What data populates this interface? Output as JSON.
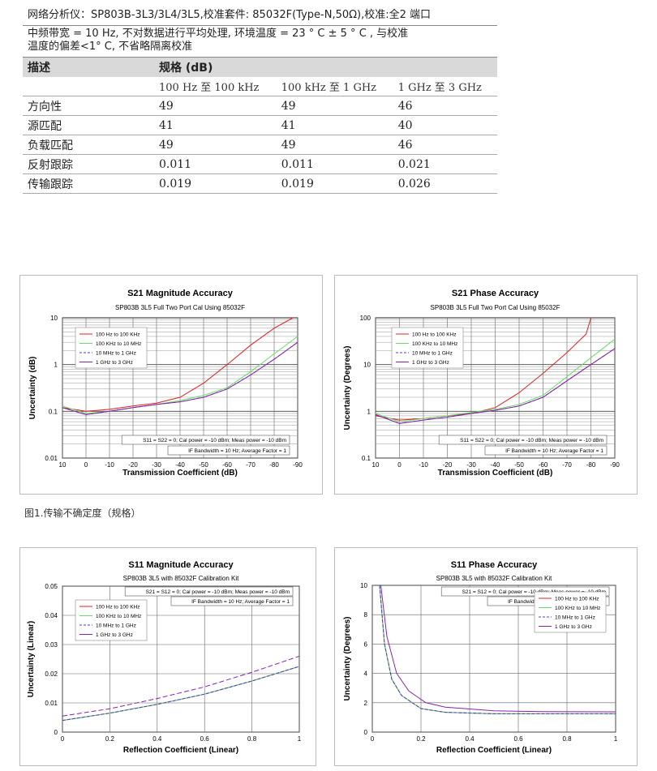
{
  "spec": {
    "header": "网络分析仪：SP803B-3L3/3L4/3L5,校准套件: 85032F(Type-N,50Ω),校准:全2 端口",
    "note_line1": "中频带宽 = 10 Hz, 不对数据进行平均处理, 环境温度 = 23 ° C ± 5 ° C , 与校准",
    "note_line2": "温度的偏差<1° C, 不省略隔离校准",
    "col_desc": "描述",
    "col_spec": "规格 (dB)",
    "bands": [
      "100 Hz 至 100 kHz",
      "100 kHz 至 1 GHz",
      "1 GHz 至 3 GHz"
    ],
    "rows": [
      {
        "name": "方向性",
        "v": [
          "49",
          "49",
          "46"
        ]
      },
      {
        "name": "源匹配",
        "v": [
          "41",
          "41",
          "40"
        ]
      },
      {
        "name": "负载匹配",
        "v": [
          "49",
          "49",
          "46"
        ]
      },
      {
        "name": "反射跟踪",
        "v": [
          "0.011",
          "0.011",
          "0.021"
        ]
      },
      {
        "name": "传输跟踪",
        "v": [
          "0.019",
          "0.019",
          "0.026"
        ]
      }
    ]
  },
  "caption": "图1.传输不确定度（规格）",
  "legend": [
    "100 Hz to 100 KHz",
    "100 KHz to 10 MHz",
    "10 MHz to 1 GHz",
    "1 GHz to 3 GHz"
  ],
  "colors": {
    "s1": "#e02020",
    "s2": "#66dd66",
    "s3": "#4444cc",
    "s4": "#8822aa"
  },
  "chart_data": [
    {
      "type": "line",
      "title": "S21 Magnitude Accuracy",
      "subtitle": "SP803B  3L5 Full Two Port Cal Using 85032F",
      "xlabel": "Transmission Coefficient (dB)",
      "ylabel": "Uncertainty (dB)",
      "xlim": [
        10,
        -90
      ],
      "ylim": [
        0.01,
        10
      ],
      "yscale": "log",
      "xticks": [
        "10",
        "0",
        "-10",
        "-20",
        "-30",
        "-40",
        "-50",
        "-60",
        "-70",
        "-80",
        "-90"
      ],
      "yticks": [
        "10",
        "1",
        "0.1",
        "0.01"
      ],
      "notes": [
        "S11 = S22 = 0; Cal power = -10 dBm; Meas power = -10 dBm",
        "IF Bandwidth = 10 Hz; Average Factor = 1"
      ],
      "series": [
        {
          "name": "100 Hz to 100 KHz",
          "x": [
            10,
            0,
            -10,
            -20,
            -30,
            -40,
            -50,
            -60,
            -70,
            -80,
            -88
          ],
          "values": [
            0.12,
            0.1,
            0.11,
            0.13,
            0.15,
            0.2,
            0.4,
            1.0,
            2.6,
            6.0,
            10
          ]
        },
        {
          "name": "100 KHz to 10 MHz",
          "x": [
            10,
            0,
            -10,
            -20,
            -30,
            -40,
            -50,
            -60,
            -70,
            -80,
            -90
          ],
          "values": [
            0.13,
            0.09,
            0.1,
            0.12,
            0.14,
            0.17,
            0.22,
            0.32,
            0.7,
            1.7,
            4.0
          ]
        },
        {
          "name": "10 MHz to 1 GHz",
          "x": [
            10,
            0,
            -10,
            -20,
            -30,
            -40,
            -50,
            -60,
            -70,
            -80,
            -90
          ],
          "values": [
            0.12,
            0.085,
            0.1,
            0.12,
            0.14,
            0.16,
            0.2,
            0.3,
            0.6,
            1.3,
            3.0
          ]
        },
        {
          "name": "1 GHz to 3 GHz",
          "x": [
            10,
            0,
            -10,
            -20,
            -30,
            -40,
            -50,
            -60,
            -70,
            -80,
            -90
          ],
          "values": [
            0.12,
            0.085,
            0.1,
            0.12,
            0.14,
            0.16,
            0.2,
            0.3,
            0.6,
            1.3,
            3.0
          ]
        }
      ]
    },
    {
      "type": "line",
      "title": "S21 Phase Accuracy",
      "subtitle": "SP803B  3L5 Full Two Port Cal Using 85032F",
      "xlabel": "Transmission Coefficient (dB)",
      "ylabel": "Uncertainty (Degrees)",
      "xlim": [
        10,
        -90
      ],
      "ylim": [
        0.1,
        100
      ],
      "yscale": "log",
      "xticks": [
        "10",
        "0",
        "-10",
        "-20",
        "-30",
        "-40",
        "-50",
        "-60",
        "-70",
        "-80",
        "-90"
      ],
      "yticks": [
        "100",
        "10",
        "1",
        "0.1"
      ],
      "notes": [
        "S11 = S22 = 0; Cal power = -10 dBm; Meas power = -10 dBm",
        "IF Bandwidth = 10 Hz; Average Factor = 1"
      ],
      "series": [
        {
          "name": "100 Hz to 100 KHz",
          "x": [
            10,
            0,
            -10,
            -20,
            -30,
            -40,
            -50,
            -60,
            -70,
            -78,
            -80
          ],
          "values": [
            0.8,
            0.65,
            0.7,
            0.8,
            0.9,
            1.2,
            2.5,
            6.5,
            18,
            45,
            100
          ]
        },
        {
          "name": "100 KHz to 10 MHz",
          "x": [
            10,
            0,
            -10,
            -20,
            -30,
            -40,
            -50,
            -60,
            -70,
            -80,
            -90
          ],
          "values": [
            0.9,
            0.6,
            0.7,
            0.8,
            0.95,
            1.1,
            1.4,
            2.2,
            5.5,
            14,
            35
          ]
        },
        {
          "name": "10 MHz to 1 GHz",
          "x": [
            10,
            0,
            -10,
            -20,
            -30,
            -40,
            -50,
            -60,
            -70,
            -80,
            -90
          ],
          "values": [
            0.85,
            0.55,
            0.65,
            0.75,
            0.9,
            1.05,
            1.3,
            2.0,
            4.5,
            10,
            22
          ]
        },
        {
          "name": "1 GHz to 3 GHz",
          "x": [
            10,
            0,
            -10,
            -20,
            -30,
            -40,
            -50,
            -60,
            -70,
            -80,
            -90
          ],
          "values": [
            0.85,
            0.55,
            0.65,
            0.75,
            0.9,
            1.05,
            1.3,
            2.0,
            4.5,
            10,
            22
          ]
        }
      ]
    },
    {
      "type": "line",
      "title": "S11 Magnitude Accuracy",
      "subtitle": "SP803B  3L5 with 85032F Calibration Kit",
      "xlabel": "Reflection Coefficient (Linear)",
      "ylabel": "Uncertainty (Linear)",
      "xlim": [
        0,
        1
      ],
      "ylim": [
        0,
        0.05
      ],
      "yscale": "linear",
      "xticks": [
        "0",
        "0.2",
        "0.4",
        "0.6",
        "0.8",
        "1"
      ],
      "yticks": [
        "0.05",
        "0.04",
        "0.03",
        "0.02",
        "0.01",
        "0"
      ],
      "notes": [
        "S21 = S12 = 0; Cal power = -10 dBm; Meas power = -10 dBm",
        "IF Bandwidth = 10 Hz; Average Factor = 1"
      ],
      "series": [
        {
          "name": "100 Hz to 100 KHz",
          "x": [
            0,
            0.2,
            0.4,
            0.6,
            0.8,
            1
          ],
          "values": [
            0.004,
            0.0065,
            0.0095,
            0.013,
            0.0175,
            0.0225
          ]
        },
        {
          "name": "100 KHz to 10 MHz",
          "x": [
            0,
            0.2,
            0.4,
            0.6,
            0.8,
            1
          ],
          "values": [
            0.004,
            0.0065,
            0.0095,
            0.013,
            0.0175,
            0.0225
          ]
        },
        {
          "name": "10 MHz to 1 GHz",
          "x": [
            0,
            0.2,
            0.4,
            0.6,
            0.8,
            1
          ],
          "values": [
            0.004,
            0.0065,
            0.0095,
            0.013,
            0.0175,
            0.0225
          ]
        },
        {
          "name": "1 GHz to 3 GHz",
          "x": [
            0,
            0.2,
            0.4,
            0.6,
            0.8,
            1
          ],
          "values": [
            0.0055,
            0.008,
            0.0115,
            0.0155,
            0.0205,
            0.026
          ]
        }
      ]
    },
    {
      "type": "line",
      "title": "S11 Phase Accuracy",
      "subtitle": "SP803B  3L5 with 85032F Calibration Kit",
      "xlabel": "Reflection Coefficient (Linear)",
      "ylabel": "Uncertainty (Degrees)",
      "xlim": [
        0,
        1
      ],
      "ylim": [
        0,
        10
      ],
      "yscale": "linear",
      "xticks": [
        "0",
        "0.2",
        "0.4",
        "0.6",
        "0.8",
        "1"
      ],
      "yticks": [
        "10",
        "8",
        "6",
        "4",
        "2",
        "0"
      ],
      "notes": [
        "S21 = S12 = 0; Cal power = -10 dBm; Meas power = -10 dBm",
        "IF Bandwidth = 10 Hz; Average Factor = 1"
      ],
      "series": [
        {
          "name": "100 Hz to 100 KHz",
          "x": [
            0.03,
            0.05,
            0.08,
            0.12,
            0.2,
            0.3,
            0.5,
            0.7,
            1
          ],
          "values": [
            10,
            6.0,
            3.6,
            2.5,
            1.6,
            1.35,
            1.25,
            1.25,
            1.25
          ]
        },
        {
          "name": "100 KHz to 10 MHz",
          "x": [
            0.03,
            0.05,
            0.08,
            0.12,
            0.2,
            0.3,
            0.5,
            0.7,
            1
          ],
          "values": [
            10,
            6.0,
            3.6,
            2.5,
            1.6,
            1.35,
            1.25,
            1.25,
            1.25
          ]
        },
        {
          "name": "10 MHz to 1 GHz",
          "x": [
            0.03,
            0.05,
            0.08,
            0.12,
            0.2,
            0.3,
            0.5,
            0.7,
            1
          ],
          "values": [
            10,
            6.0,
            3.6,
            2.5,
            1.6,
            1.35,
            1.25,
            1.25,
            1.25
          ]
        },
        {
          "name": "1 GHz to 3 GHz",
          "x": [
            0.035,
            0.06,
            0.1,
            0.15,
            0.22,
            0.3,
            0.5,
            0.7,
            1
          ],
          "values": [
            10,
            6.5,
            4.0,
            2.8,
            2.0,
            1.7,
            1.45,
            1.4,
            1.38
          ]
        }
      ]
    }
  ]
}
